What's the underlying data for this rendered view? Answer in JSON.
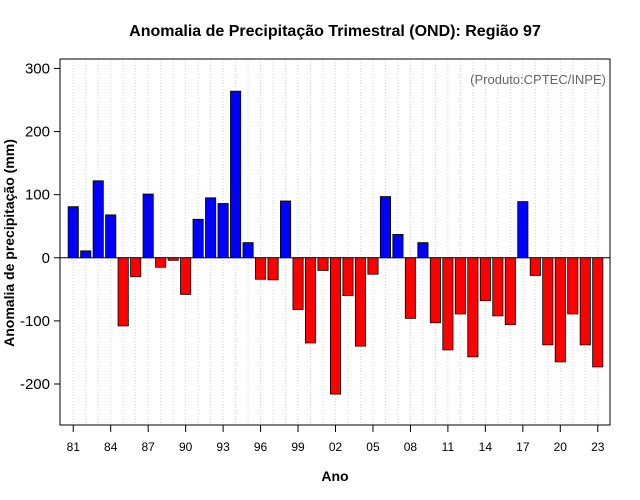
{
  "chart_data": {
    "type": "bar",
    "title": "Anomalia de Precipitação Trimestral (OND): Região 97",
    "annotation": "(Produto:CPTEC/INPE)",
    "xlabel": "Ano",
    "ylabel": "Anomalia de precipitação (mm)",
    "ylim": [
      -265,
      315
    ],
    "yticks": [
      -200,
      -100,
      0,
      100,
      200,
      300
    ],
    "x_tick_labels": [
      "81",
      "84",
      "87",
      "90",
      "93",
      "96",
      "99",
      "02",
      "05",
      "08",
      "11",
      "14",
      "17",
      "20",
      "23"
    ],
    "categories": [
      "1981",
      "1982",
      "1983",
      "1984",
      "1985",
      "1986",
      "1987",
      "1988",
      "1989",
      "1990",
      "1991",
      "1992",
      "1993",
      "1994",
      "1995",
      "1996",
      "1997",
      "1998",
      "1999",
      "2000",
      "2001",
      "2002",
      "2003",
      "2004",
      "2005",
      "2006",
      "2007",
      "2008",
      "2009",
      "2010",
      "2011",
      "2012",
      "2013",
      "2014",
      "2015",
      "2016",
      "2017",
      "2018",
      "2019",
      "2020",
      "2021",
      "2022",
      "2023"
    ],
    "values": [
      81,
      11,
      122,
      68,
      -108,
      -30,
      101,
      -15,
      -4,
      -58,
      61,
      95,
      86,
      264,
      24,
      -34,
      -35,
      90,
      -82,
      -135,
      -20,
      -216,
      -60,
      -140,
      -26,
      97,
      37,
      -96,
      24,
      -103,
      -146,
      -89,
      -157,
      -68,
      -92,
      -106,
      89,
      -28,
      -138,
      -165,
      -89,
      -138,
      -173
    ],
    "colors": {
      "positive": "#0000ff",
      "negative": "#ff0000",
      "zero_line": "#000000",
      "grid": "#d3d3d3"
    },
    "grid": true
  }
}
